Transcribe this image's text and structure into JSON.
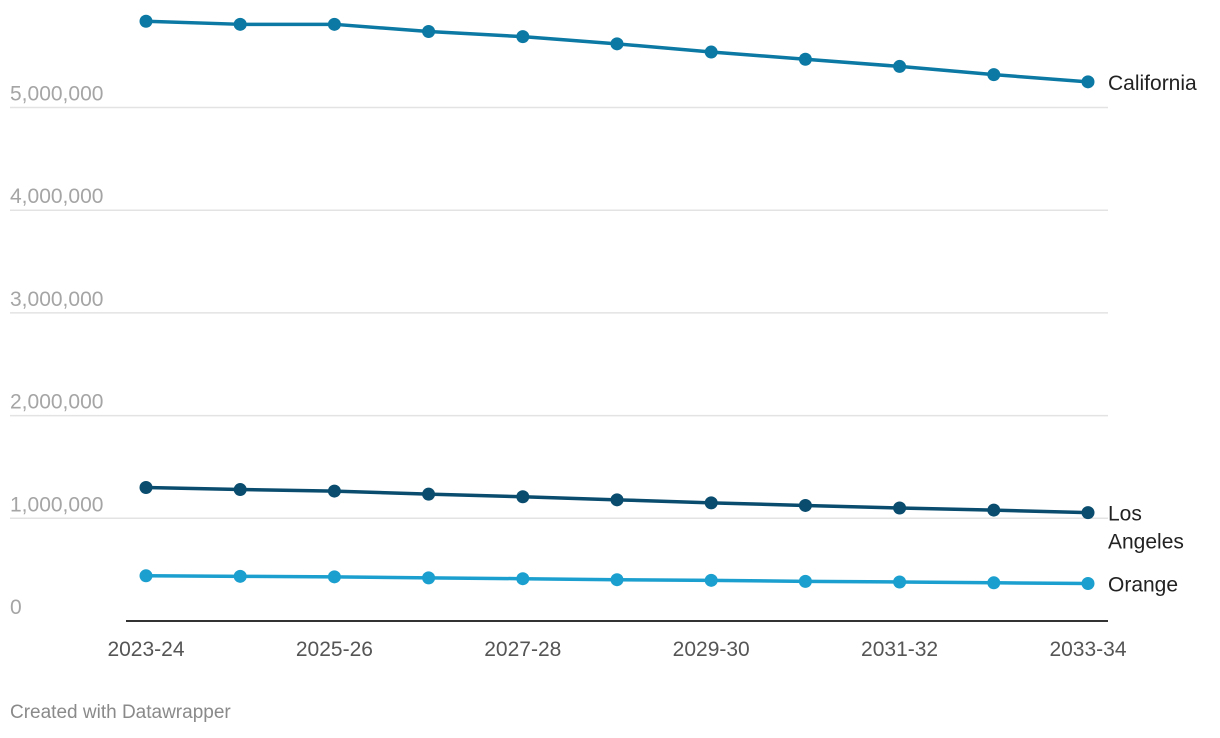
{
  "chart_data": {
    "type": "line",
    "x": [
      "2023-24",
      "2024-25",
      "2025-26",
      "2026-27",
      "2027-28",
      "2028-29",
      "2029-30",
      "2030-31",
      "2031-32",
      "2032-33",
      "2033-34"
    ],
    "x_tick_labels": [
      "2023-24",
      "2025-26",
      "2027-28",
      "2029-30",
      "2031-32",
      "2033-34"
    ],
    "y_ticks": [
      0,
      1000000,
      2000000,
      3000000,
      4000000,
      5000000
    ],
    "y_tick_labels": [
      "0",
      "1,000,000",
      "2,000,000",
      "3,000,000",
      "4,000,000",
      "5,000,000"
    ],
    "ylim": [
      0,
      5850000
    ],
    "grid": true,
    "series": [
      {
        "name": "California",
        "label_lines": [
          "California"
        ],
        "color": "#0b79a3",
        "values": [
          5840000,
          5810000,
          5810000,
          5740000,
          5690000,
          5620000,
          5540000,
          5470000,
          5400000,
          5320000,
          5250000
        ]
      },
      {
        "name": "Los Angeles",
        "label_lines": [
          "Los",
          "Angeles"
        ],
        "color": "#094c6e",
        "values": [
          1300000,
          1280000,
          1265000,
          1235000,
          1210000,
          1180000,
          1150000,
          1125000,
          1100000,
          1080000,
          1055000
        ]
      },
      {
        "name": "Orange",
        "label_lines": [
          "Orange"
        ],
        "color": "#1b9fce",
        "values": [
          440000,
          435000,
          430000,
          420000,
          412000,
          402000,
          396000,
          386000,
          380000,
          372000,
          365000
        ]
      }
    ]
  },
  "footer": {
    "credit": "Created with Datawrapper"
  }
}
